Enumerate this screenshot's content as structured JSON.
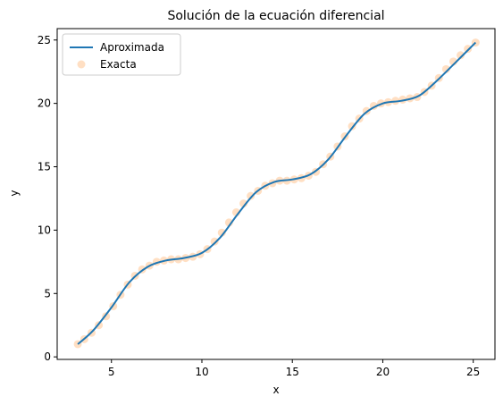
{
  "chart_data": {
    "type": "line",
    "title": "Solución de la ecuación diferencial",
    "xlabel": "x",
    "ylabel": "y",
    "xlim": [
      2.0,
      26.2
    ],
    "ylim": [
      -0.2,
      25.9
    ],
    "xticks": [
      5,
      10,
      15,
      20,
      25
    ],
    "yticks": [
      0,
      5,
      10,
      15,
      20,
      25
    ],
    "grid": false,
    "legend_position": "top-left",
    "series": [
      {
        "name": "Aproximada",
        "style": "line",
        "color": "#1f77b4",
        "x": [
          3.14,
          4.0,
          5.0,
          6.0,
          7.0,
          8.0,
          9.0,
          10.0,
          11.0,
          12.0,
          13.0,
          14.0,
          15.0,
          16.0,
          17.0,
          18.0,
          19.0,
          20.0,
          21.0,
          22.0,
          23.0,
          24.0,
          25.13
        ],
        "y": [
          1.0,
          2.1,
          3.9,
          5.9,
          7.1,
          7.6,
          7.8,
          8.2,
          9.4,
          11.3,
          13.0,
          13.8,
          14.0,
          14.4,
          15.6,
          17.5,
          19.2,
          20.0,
          20.2,
          20.6,
          21.8,
          23.2,
          24.8
        ]
      },
      {
        "name": "Exacta",
        "style": "scatter",
        "color": "#ff7f0e",
        "alpha": 0.25,
        "x": [
          3.14,
          3.5,
          3.9,
          4.3,
          4.7,
          5.1,
          5.5,
          5.9,
          6.3,
          6.7,
          7.1,
          7.5,
          7.9,
          8.3,
          8.7,
          9.1,
          9.5,
          9.9,
          10.3,
          10.7,
          11.1,
          11.5,
          11.9,
          12.3,
          12.7,
          13.1,
          13.5,
          13.9,
          14.3,
          14.7,
          15.1,
          15.5,
          15.9,
          16.3,
          16.7,
          17.1,
          17.5,
          17.9,
          18.3,
          18.7,
          19.1,
          19.5,
          19.9,
          20.3,
          20.7,
          21.1,
          21.5,
          21.9,
          22.3,
          22.7,
          23.1,
          23.5,
          23.9,
          24.3,
          24.7,
          25.13
        ],
        "y": [
          1.0,
          1.4,
          1.9,
          2.5,
          3.2,
          4.0,
          4.9,
          5.7,
          6.4,
          6.9,
          7.2,
          7.5,
          7.6,
          7.7,
          7.7,
          7.8,
          7.9,
          8.1,
          8.5,
          9.1,
          9.8,
          10.6,
          11.4,
          12.1,
          12.7,
          13.1,
          13.5,
          13.7,
          13.9,
          13.9,
          14.0,
          14.1,
          14.3,
          14.6,
          15.2,
          15.8,
          16.6,
          17.4,
          18.2,
          18.8,
          19.4,
          19.8,
          20.0,
          20.1,
          20.2,
          20.3,
          20.4,
          20.5,
          20.9,
          21.4,
          22.0,
          22.7,
          23.3,
          23.8,
          24.3,
          24.8
        ]
      }
    ]
  }
}
